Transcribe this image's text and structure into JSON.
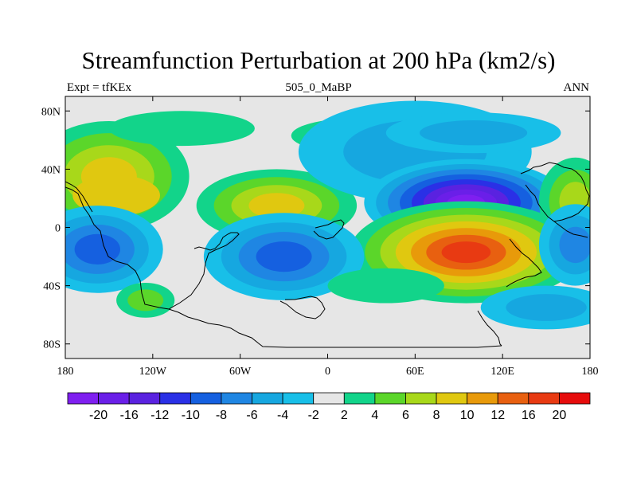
{
  "title": "Streamfunction Perturbation at 200 hPa (km2/s)",
  "subtitle_left": "Expt = tfKEx",
  "subtitle_center": "505_0_MaBP",
  "subtitle_right": "ANN",
  "chart_data": {
    "type": "heatmap",
    "projection": "cylindrical-equidistant",
    "xlim": [
      -180,
      180
    ],
    "ylim": [
      -90,
      90
    ],
    "x_ticks": [
      {
        "value": -180,
        "label": "180"
      },
      {
        "value": -120,
        "label": "120W"
      },
      {
        "value": -60,
        "label": "60W"
      },
      {
        "value": 0,
        "label": "0"
      },
      {
        "value": 60,
        "label": "60E"
      },
      {
        "value": 120,
        "label": "120E"
      },
      {
        "value": 180,
        "label": "180"
      }
    ],
    "y_ticks": [
      {
        "value": 80,
        "label": "80N"
      },
      {
        "value": 40,
        "label": "40N"
      },
      {
        "value": 0,
        "label": "0"
      },
      {
        "value": -40,
        "label": "40S"
      },
      {
        "value": -80,
        "label": "80S"
      }
    ],
    "colorbar": {
      "labels": [
        "-20",
        "-16",
        "-12",
        "-10",
        "-8",
        "-6",
        "-4",
        "-2",
        "2",
        "4",
        "6",
        "8",
        "10",
        "12",
        "16",
        "20"
      ],
      "colors": [
        "#7f1ff0",
        "#6a1fe8",
        "#5a22e0",
        "#2a30e6",
        "#1560e0",
        "#1f86e3",
        "#16a7e0",
        "#18bfe8",
        "#e6e6e6",
        "#12d48a",
        "#5bd62a",
        "#a8d81a",
        "#e0c810",
        "#e89a0a",
        "#e86010",
        "#e83a12",
        "#e60c0c"
      ]
    },
    "features": [
      {
        "label": "positive maximum",
        "lon": 95,
        "lat": -17,
        "level": 16
      },
      {
        "label": "negative minimum",
        "lon": 95,
        "lat": 17,
        "level": -20
      },
      {
        "label": "positive center",
        "lon": -145,
        "lat": 22,
        "level": 8
      },
      {
        "label": "positive center",
        "lon": -35,
        "lat": 15,
        "level": 8
      },
      {
        "label": "negative center",
        "lon": -158,
        "lat": -15,
        "level": -8
      },
      {
        "label": "negative center",
        "lon": -30,
        "lat": -20,
        "level": -8
      },
      {
        "label": "negative center",
        "lon": 60,
        "lat": 62,
        "level": -4
      },
      {
        "label": "positive center",
        "lon": 0,
        "lat": 63,
        "level": 4
      },
      {
        "label": "positive center",
        "lon": -125,
        "lat": -50,
        "level": 4
      },
      {
        "label": "negative center",
        "lon": 170,
        "lat": -12,
        "level": -6
      },
      {
        "label": "positive center",
        "lon": 170,
        "lat": 18,
        "level": 6
      }
    ]
  }
}
